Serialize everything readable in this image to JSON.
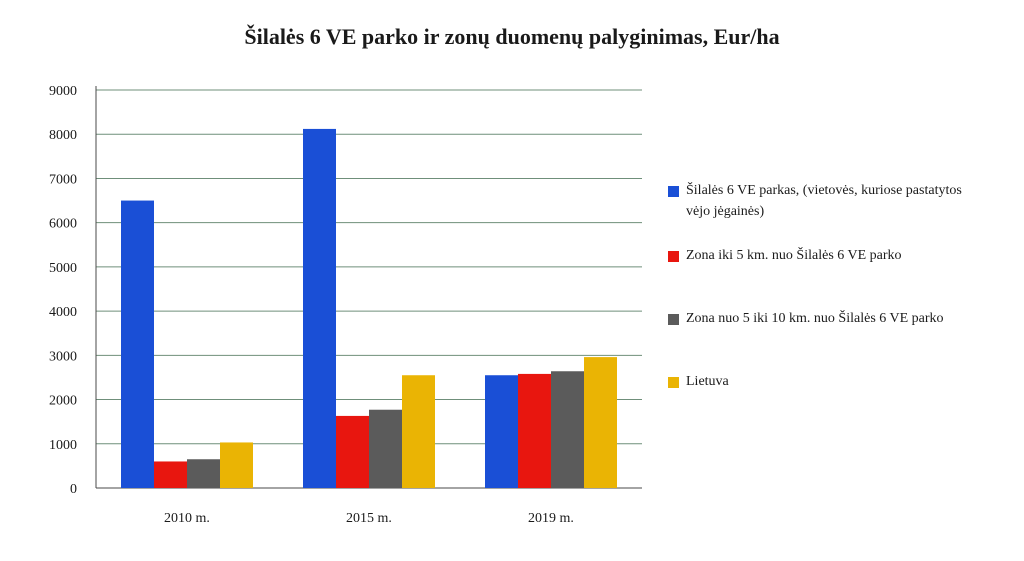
{
  "chart_data": {
    "type": "bar",
    "title": "Šilalės 6 VE parko ir zonų duomenų palyginimas, Eur/ha",
    "xlabel": "",
    "ylabel": "",
    "categories": [
      "2010 m.",
      "2015 m.",
      "2019 m."
    ],
    "ylim": [
      0,
      9000
    ],
    "yticks": [
      "0",
      "1000",
      "2000",
      "3000",
      "4000",
      "5000",
      "6000",
      "7000",
      "8000",
      "9000"
    ],
    "grid": true,
    "legend_position": "right",
    "series": [
      {
        "name": "Šilalės 6 VE parkas, (vietovės, kuriose pastatytos vėjo jėgainės)",
        "color": "#1a4fd6",
        "values": [
          6500,
          8120,
          2550
        ]
      },
      {
        "name": "Zona iki 5 km. nuo Šilalės 6 VE parko",
        "color": "#e8160f",
        "values": [
          600,
          1630,
          2580
        ]
      },
      {
        "name": "Zona nuo 5 iki 10 km. nuo Šilalės 6 VE parko",
        "color": "#5b5b5b",
        "values": [
          650,
          1770,
          2640
        ]
      },
      {
        "name": "Lietuva",
        "color": "#eab404",
        "values": [
          1030,
          2550,
          2960
        ]
      }
    ]
  }
}
